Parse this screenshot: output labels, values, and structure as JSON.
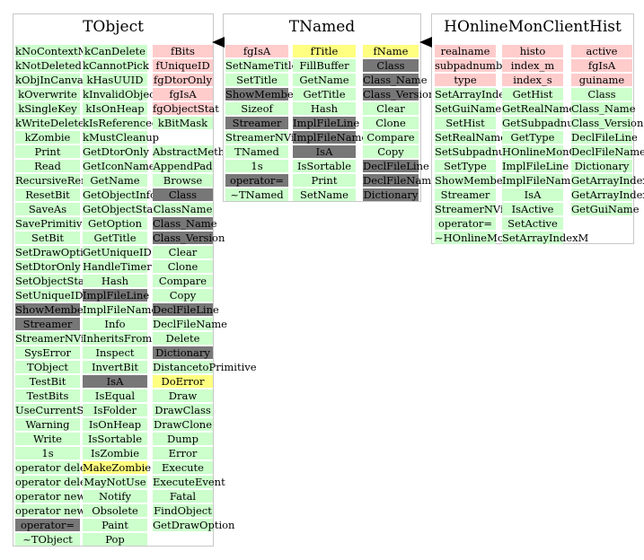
{
  "classes": [
    {
      "name": "TObject",
      "columns": [
        [
          [
            "kNoContextMenu",
            "method"
          ],
          [
            "kNotDeleted",
            "method"
          ],
          [
            "kObjInCanvas",
            "method"
          ],
          [
            "kOverwrite",
            "method"
          ],
          [
            "kSingleKey",
            "method"
          ],
          [
            "kWriteDelete",
            "method"
          ],
          [
            "kZombie",
            "method"
          ],
          [
            "Print",
            "method"
          ],
          [
            "Read",
            "method"
          ],
          [
            "RecursiveRemove",
            "method"
          ],
          [
            "ResetBit",
            "method"
          ],
          [
            "SaveAs",
            "method"
          ],
          [
            "SavePrimitive",
            "method"
          ],
          [
            "SetBit",
            "method"
          ],
          [
            "SetDrawOption",
            "method"
          ],
          [
            "SetDtorOnly",
            "method"
          ],
          [
            "SetObjectStat",
            "method"
          ],
          [
            "SetUniqueID",
            "method"
          ],
          [
            "ShowMembers",
            "inherited"
          ],
          [
            "Streamer",
            "inherited"
          ],
          [
            "StreamerNVirtual",
            "method"
          ],
          [
            "SysError",
            "method"
          ],
          [
            "TObject",
            "method"
          ],
          [
            "TestBit",
            "method"
          ],
          [
            "TestBits",
            "method"
          ],
          [
            "UseCurrentStyle",
            "method"
          ],
          [
            "Warning",
            "method"
          ],
          [
            "Write",
            "method"
          ],
          [
            "1s",
            "method"
          ],
          [
            "operator delete",
            "method"
          ],
          [
            "operator delete[]",
            "method"
          ],
          [
            "operator new",
            "method"
          ],
          [
            "operator new[]",
            "method"
          ],
          [
            "operator=",
            "inherited"
          ],
          [
            "~TObject",
            "method"
          ]
        ],
        [
          [
            "kCanDelete",
            "method"
          ],
          [
            "kCannotPick",
            "method"
          ],
          [
            "kHasUUID",
            "method"
          ],
          [
            "kInvalidObject",
            "method"
          ],
          [
            "kIsOnHeap",
            "method"
          ],
          [
            "kIsReferenced",
            "method"
          ],
          [
            "kMustCleanup",
            "method"
          ],
          [
            "GetDtorOnly",
            "method"
          ],
          [
            "GetIconName",
            "method"
          ],
          [
            "GetName",
            "method"
          ],
          [
            "GetObjectInfo",
            "method"
          ],
          [
            "GetObjectStat",
            "method"
          ],
          [
            "GetOption",
            "method"
          ],
          [
            "GetTitle",
            "method"
          ],
          [
            "GetUniqueID",
            "method"
          ],
          [
            "HandleTimer",
            "method"
          ],
          [
            "Hash",
            "method"
          ],
          [
            "ImplFileLine",
            "inherited"
          ],
          [
            "ImplFileName",
            "method"
          ],
          [
            "Info",
            "method"
          ],
          [
            "InheritsFrom",
            "method"
          ],
          [
            "Inspect",
            "method"
          ],
          [
            "InvertBit",
            "method"
          ],
          [
            "IsA",
            "inherited"
          ],
          [
            "IsEqual",
            "method"
          ],
          [
            "IsFolder",
            "method"
          ],
          [
            "IsOnHeap",
            "method"
          ],
          [
            "IsSortable",
            "method"
          ],
          [
            "IsZombie",
            "method"
          ],
          [
            "MakeZombie",
            "title"
          ],
          [
            "MayNotUse",
            "method"
          ],
          [
            "Notify",
            "method"
          ],
          [
            "Obsolete",
            "method"
          ],
          [
            "Paint",
            "method"
          ],
          [
            "Pop",
            "method"
          ]
        ],
        [
          [
            "fBits",
            "member"
          ],
          [
            "fUniqueID",
            "member"
          ],
          [
            "fgDtorOnly",
            "member"
          ],
          [
            "fgIsA",
            "member"
          ],
          [
            "fgObjectStat",
            "member"
          ],
          [
            "kBitMask",
            "method"
          ],
          [
            "",
            "blank"
          ],
          [
            "AbstractMethod",
            "method"
          ],
          [
            "AppendPad",
            "method"
          ],
          [
            "Browse",
            "method"
          ],
          [
            "Class",
            "inherited"
          ],
          [
            "ClassName",
            "method"
          ],
          [
            "Class_Name",
            "inherited"
          ],
          [
            "Class_Version",
            "inherited"
          ],
          [
            "Clear",
            "method"
          ],
          [
            "Clone",
            "method"
          ],
          [
            "Compare",
            "method"
          ],
          [
            "Copy",
            "method"
          ],
          [
            "DeclFileLine",
            "inherited"
          ],
          [
            "DeclFileName",
            "method"
          ],
          [
            "Delete",
            "method"
          ],
          [
            "Dictionary",
            "inherited"
          ],
          [
            "DistancetoPrimitive",
            "method"
          ],
          [
            "DoError",
            "title"
          ],
          [
            "Draw",
            "method"
          ],
          [
            "DrawClass",
            "method"
          ],
          [
            "DrawClone",
            "method"
          ],
          [
            "Dump",
            "method"
          ],
          [
            "Error",
            "method"
          ],
          [
            "Execute",
            "method"
          ],
          [
            "ExecuteEvent",
            "method"
          ],
          [
            "Fatal",
            "method"
          ],
          [
            "FindObject",
            "method"
          ],
          [
            "GetDrawOption",
            "method"
          ]
        ]
      ]
    },
    {
      "name": "TNamed",
      "columns": [
        [
          [
            "fgIsA",
            "member"
          ],
          [
            "SetNameTitle",
            "method"
          ],
          [
            "SetTitle",
            "method"
          ],
          [
            "ShowMembers",
            "inherited"
          ],
          [
            "Sizeof",
            "method"
          ],
          [
            "Streamer",
            "inherited"
          ],
          [
            "StreamerNVirtual",
            "method"
          ],
          [
            "TNamed",
            "method"
          ],
          [
            "1s",
            "method"
          ],
          [
            "operator=",
            "inherited"
          ],
          [
            "~TNamed",
            "method"
          ]
        ],
        [
          [
            "fTitle",
            "title"
          ],
          [
            "FillBuffer",
            "method"
          ],
          [
            "GetName",
            "method"
          ],
          [
            "GetTitle",
            "method"
          ],
          [
            "Hash",
            "method"
          ],
          [
            "ImplFileLine",
            "inherited"
          ],
          [
            "ImplFileName",
            "inherited"
          ],
          [
            "IsA",
            "inherited"
          ],
          [
            "IsSortable",
            "method"
          ],
          [
            "Print",
            "method"
          ],
          [
            "SetName",
            "method"
          ]
        ],
        [
          [
            "fName",
            "title"
          ],
          [
            "Class",
            "inherited"
          ],
          [
            "Class_Name",
            "inherited"
          ],
          [
            "Class_Version",
            "inherited"
          ],
          [
            "Clear",
            "method"
          ],
          [
            "Clone",
            "method"
          ],
          [
            "Compare",
            "method"
          ],
          [
            "Copy",
            "method"
          ],
          [
            "DeclFileLine",
            "inherited"
          ],
          [
            "DeclFileName",
            "inherited"
          ],
          [
            "Dictionary",
            "inherited"
          ]
        ]
      ]
    },
    {
      "name": "HOnlineMonClientHist",
      "columns": [
        [
          [
            "realname",
            "member"
          ],
          [
            "subpadnumber",
            "member"
          ],
          [
            "type",
            "member"
          ],
          [
            "SetArrayIndexS",
            "method"
          ],
          [
            "SetGuiName",
            "method"
          ],
          [
            "SetHist",
            "method"
          ],
          [
            "SetRealName",
            "method"
          ],
          [
            "SetSubpadnumber",
            "method"
          ],
          [
            "SetType",
            "method"
          ],
          [
            "ShowMembers",
            "method"
          ],
          [
            "Streamer",
            "method"
          ],
          [
            "StreamerNVirtual",
            "method"
          ],
          [
            "operator=",
            "method"
          ],
          [
            "~HOnlineMonClientHist",
            "method"
          ]
        ],
        [
          [
            "histo",
            "member"
          ],
          [
            "index_m",
            "member"
          ],
          [
            "index_s",
            "member"
          ],
          [
            "GetHist",
            "method"
          ],
          [
            "GetRealName",
            "method"
          ],
          [
            "GetSubpadnumber",
            "method"
          ],
          [
            "GetType",
            "method"
          ],
          [
            "HOnlineMonClientHist",
            "method"
          ],
          [
            "ImplFileLine",
            "method"
          ],
          [
            "ImplFileName",
            "method"
          ],
          [
            "IsA",
            "method"
          ],
          [
            "IsActive",
            "method"
          ],
          [
            "SetActive",
            "method"
          ],
          [
            "SetArrayIndexM",
            "method"
          ]
        ],
        [
          [
            "active",
            "member"
          ],
          [
            "fgIsA",
            "member"
          ],
          [
            "guiname",
            "member"
          ],
          [
            "Class",
            "method"
          ],
          [
            "Class_Name",
            "method"
          ],
          [
            "Class_Version",
            "method"
          ],
          [
            "DeclFileLine",
            "method"
          ],
          [
            "DeclFileName",
            "method"
          ],
          [
            "Dictionary",
            "method"
          ],
          [
            "GetArrayIndexM",
            "method"
          ],
          [
            "GetArrayIndexS",
            "method"
          ],
          [
            "GetGuiName",
            "method"
          ]
        ]
      ]
    }
  ],
  "colors": {
    "method": "#ccffcc",
    "member": "#ffcccc",
    "title": "#ffff80",
    "inherited": "#777777",
    "border": "#c8c8c8",
    "arrow": "#000000"
  }
}
